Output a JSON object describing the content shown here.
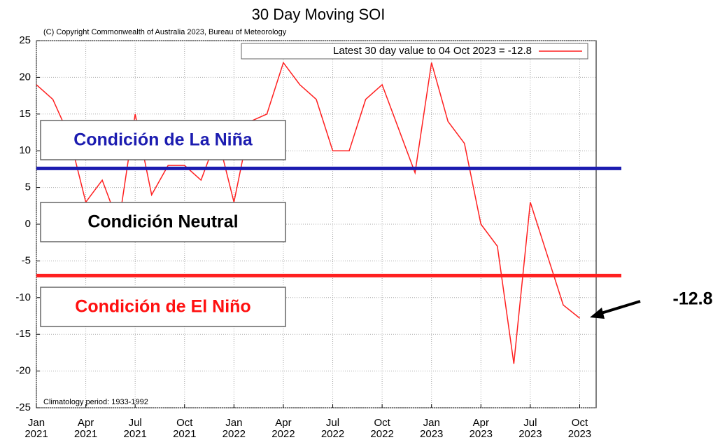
{
  "chart_data": {
    "type": "line",
    "title": "30 Day Moving SOI",
    "subtitle": "(C) Copyright Commonwealth of Australia 2023, Bureau of Meteorology",
    "note": "Climatology period: 1933-1992",
    "callout": "-12.8",
    "x": [
      "2021-01",
      "2021-02",
      "2021-03",
      "2021-04",
      "2021-05",
      "2021-06",
      "2021-07",
      "2021-08",
      "2021-09",
      "2021-10",
      "2021-11",
      "2021-12",
      "2022-01",
      "2022-02",
      "2022-03",
      "2022-04",
      "2022-05",
      "2022-06",
      "2022-07",
      "2022-08",
      "2022-09",
      "2022-10",
      "2022-11",
      "2022-12",
      "2023-01",
      "2023-02",
      "2023-03",
      "2023-04",
      "2023-05",
      "2023-06",
      "2023-07",
      "2023-08",
      "2023-09",
      "2023-10"
    ],
    "series": [
      {
        "name": "Latest 30 day value to 04 Oct 2023 = -12.8",
        "color": "#ff2020",
        "values": [
          19,
          17,
          12,
          3,
          6,
          0,
          15,
          4,
          8,
          8,
          6,
          12,
          3,
          14,
          15,
          22,
          19,
          17,
          10,
          10,
          17,
          19,
          13,
          7,
          22,
          14,
          11,
          0,
          -3,
          -19,
          3,
          -4,
          -11,
          -12.8
        ]
      }
    ],
    "xlim": [
      "2021-01",
      "2023-11"
    ],
    "xticks": [
      {
        "value": "2021-01",
        "label": "Jan 2021"
      },
      {
        "value": "2021-04",
        "label": "Apr 2021"
      },
      {
        "value": "2021-07",
        "label": "Jul 2021"
      },
      {
        "value": "2021-10",
        "label": "Oct 2021"
      },
      {
        "value": "2022-01",
        "label": "Jan 2022"
      },
      {
        "value": "2022-04",
        "label": "Apr 2022"
      },
      {
        "value": "2022-07",
        "label": "Jul 2022"
      },
      {
        "value": "2022-10",
        "label": "Oct 2022"
      },
      {
        "value": "2023-01",
        "label": "Jan 2023"
      },
      {
        "value": "2023-04",
        "label": "Apr 2023"
      },
      {
        "value": "2023-07",
        "label": "Jul 2023"
      },
      {
        "value": "2023-10",
        "label": "Oct 2023"
      }
    ],
    "ylim": [
      -25,
      25
    ],
    "yticks": [
      -25,
      -20,
      -15,
      -10,
      -5,
      0,
      5,
      10,
      15,
      20,
      25
    ],
    "grid": true,
    "legend": "top-right",
    "thresholds": [
      {
        "value": 7.6,
        "color": "#1c1cb0"
      },
      {
        "value": -7,
        "color": "#ff2020"
      }
    ],
    "annotations": [
      {
        "label": "Condición de La Niña",
        "color": "#1c1cb0"
      },
      {
        "label": "Condición Neutral",
        "color": "#000000"
      },
      {
        "label": "Condición de El Niño",
        "color": "#ff1010"
      }
    ]
  }
}
